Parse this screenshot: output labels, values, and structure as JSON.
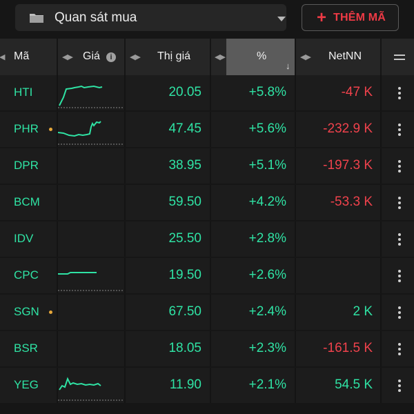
{
  "topbar": {
    "watchlist_name": "Quan sát mua",
    "add_button_label": "THÊM MÃ",
    "folder_icon": "folder-icon",
    "caret_icon": "caret-down-icon"
  },
  "header": {
    "symbol": "Mã",
    "price": "Giá",
    "market_price": "Thị giá",
    "percent": "%",
    "net_foreign": "NetNN"
  },
  "colors": {
    "up": "#2fe3a4",
    "down": "#f0424c",
    "accent": "#ee3a45",
    "dot": "#e8a83a"
  },
  "rows": [
    {
      "symbol": "HTI",
      "dot": false,
      "price": "20.05",
      "pct": "+5.8%",
      "net": "-47 K",
      "net_dir": "down",
      "spark": "hti"
    },
    {
      "symbol": "PHR",
      "dot": true,
      "price": "47.45",
      "pct": "+5.6%",
      "net": "-232.9 K",
      "net_dir": "down",
      "spark": "phr"
    },
    {
      "symbol": "DPR",
      "dot": false,
      "price": "38.95",
      "pct": "+5.1%",
      "net": "-197.3 K",
      "net_dir": "down",
      "spark": ""
    },
    {
      "symbol": "BCM",
      "dot": false,
      "price": "59.50",
      "pct": "+4.2%",
      "net": "-53.3 K",
      "net_dir": "down",
      "spark": ""
    },
    {
      "symbol": "IDV",
      "dot": false,
      "price": "25.50",
      "pct": "+2.8%",
      "net": "",
      "net_dir": "up",
      "spark": ""
    },
    {
      "symbol": "CPC",
      "dot": false,
      "price": "19.50",
      "pct": "+2.6%",
      "net": "",
      "net_dir": "up",
      "spark": "cpc"
    },
    {
      "symbol": "SGN",
      "dot": true,
      "price": "67.50",
      "pct": "+2.4%",
      "net": "2 K",
      "net_dir": "up",
      "spark": ""
    },
    {
      "symbol": "BSR",
      "dot": false,
      "price": "18.05",
      "pct": "+2.3%",
      "net": "-161.5 K",
      "net_dir": "down",
      "spark": ""
    },
    {
      "symbol": "YEG",
      "dot": false,
      "price": "11.90",
      "pct": "+2.1%",
      "net": "54.5 K",
      "net_dir": "up",
      "spark": "yeg"
    }
  ]
}
